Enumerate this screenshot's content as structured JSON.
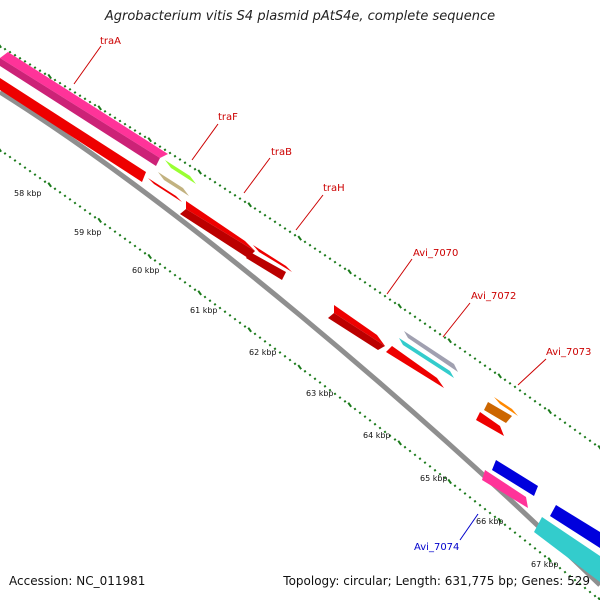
{
  "title": "Agrobacterium vitis S4 plasmid pAtS4e, complete sequence",
  "footer": {
    "accession": "Accession: NC_011981",
    "topology": "Topology: circular; Length: 631,775 bp; Genes: 529"
  },
  "colors": {
    "backbone": "#8f8f8f",
    "tick": "#1a7a1a",
    "gene_label_forward": "#cc0000",
    "gene_label_reverse": "#0000cc"
  },
  "kbp_labels": [
    "58 kbp",
    "59 kbp",
    "60 kbp",
    "61 kbp",
    "62 kbp",
    "63 kbp",
    "64 kbp",
    "65 kbp",
    "66 kbp",
    "67 kbp"
  ],
  "gene_labels": [
    {
      "name": "traA",
      "color": "#cc0000"
    },
    {
      "name": "traF",
      "color": "#cc0000"
    },
    {
      "name": "traB",
      "color": "#cc0000"
    },
    {
      "name": "traH",
      "color": "#cc0000"
    },
    {
      "name": "Avi_7070",
      "color": "#cc0000"
    },
    {
      "name": "Avi_7072",
      "color": "#cc0000"
    },
    {
      "name": "Avi_7073",
      "color": "#cc0000"
    },
    {
      "name": "Avi_7074",
      "color": "#0000cc"
    }
  ],
  "features": [
    {
      "name": "traA-feature",
      "color": "#ff3399"
    },
    {
      "name": "traF-feature",
      "color": "#99ff33"
    },
    {
      "name": "traF-shadow-feature",
      "color": "#c2b280"
    },
    {
      "name": "traB-feature",
      "color": "#ee0000"
    },
    {
      "name": "traH-feature",
      "color": "#ee0000"
    },
    {
      "name": "Avi_7070-feature",
      "color": "#ee0000"
    },
    {
      "name": "Avi_7072-feature",
      "color": "#a0a0b0"
    },
    {
      "name": "Avi_7072-cyan-feature",
      "color": "#33cccc"
    },
    {
      "name": "Avi_7073-feature",
      "color": "#ff8800"
    },
    {
      "name": "Avi_7073-red-feature",
      "color": "#ee0000"
    },
    {
      "name": "Avi_7074-feature",
      "color": "#ff3399"
    },
    {
      "name": "blue-feature",
      "color": "#0000dd"
    },
    {
      "name": "cyan-feature",
      "color": "#33cccc"
    }
  ]
}
